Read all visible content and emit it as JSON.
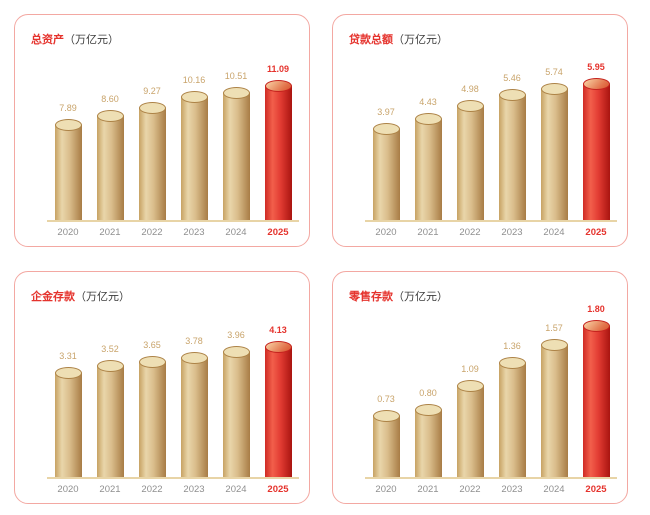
{
  "page": {
    "background": "#ffffff"
  },
  "colors": {
    "accent_red": "#e5332d",
    "panel_border": "#f3a8a2",
    "bar_tan_light": "#e9d6aa",
    "bar_tan_dark": "#a87c45",
    "axis_line": "#e8d4a6",
    "value_label_tan": "#c9a46b",
    "year_label_gray": "#8f8f8f"
  },
  "chart_data": [
    {
      "type": "bar",
      "title": "总资产",
      "unit": "（万亿元）",
      "ylabel": "万亿元",
      "categories": [
        "2020",
        "2021",
        "2022",
        "2023",
        "2024",
        "2025"
      ],
      "values": [
        7.89,
        8.6,
        9.27,
        10.16,
        10.51,
        11.09
      ],
      "value_labels": [
        "7.89",
        "8.60",
        "9.27",
        "10.16",
        "10.51",
        "11.09"
      ],
      "highlight_index": 5,
      "highlight_category": "2025",
      "ylim": [
        0,
        11.09
      ],
      "grid": false,
      "legend": false
    },
    {
      "type": "bar",
      "title": "贷款总额",
      "unit": "（万亿元）",
      "ylabel": "万亿元",
      "categories": [
        "2020",
        "2021",
        "2022",
        "2023",
        "2024",
        "2025"
      ],
      "values": [
        3.97,
        4.43,
        4.98,
        5.46,
        5.74,
        5.95
      ],
      "value_labels": [
        "3.97",
        "4.43",
        "4.98",
        "5.46",
        "5.74",
        "5.95"
      ],
      "highlight_index": 5,
      "highlight_category": "2025",
      "ylim": [
        0,
        5.95
      ],
      "grid": false,
      "legend": false
    },
    {
      "type": "bar",
      "title": "企金存款",
      "unit": "（万亿元）",
      "ylabel": "万亿元",
      "categories": [
        "2020",
        "2021",
        "2022",
        "2023",
        "2024",
        "2025"
      ],
      "values": [
        3.31,
        3.52,
        3.65,
        3.78,
        3.96,
        4.13
      ],
      "value_labels": [
        "3.31",
        "3.52",
        "3.65",
        "3.78",
        "3.96",
        "4.13"
      ],
      "highlight_index": 5,
      "highlight_category": "2025",
      "ylim": [
        0,
        4.13
      ],
      "grid": false,
      "legend": false
    },
    {
      "type": "bar",
      "title": "零售存款",
      "unit": "（万亿元）",
      "ylabel": "万亿元",
      "categories": [
        "2020",
        "2021",
        "2022",
        "2023",
        "2024",
        "2025"
      ],
      "values": [
        0.73,
        0.8,
        1.09,
        1.36,
        1.57,
        1.8
      ],
      "value_labels": [
        "0.73",
        "0.80",
        "1.09",
        "1.36",
        "1.57",
        "1.80"
      ],
      "highlight_index": 5,
      "highlight_category": "2025",
      "ylim": [
        0,
        1.8
      ],
      "grid": false,
      "legend": false
    }
  ]
}
